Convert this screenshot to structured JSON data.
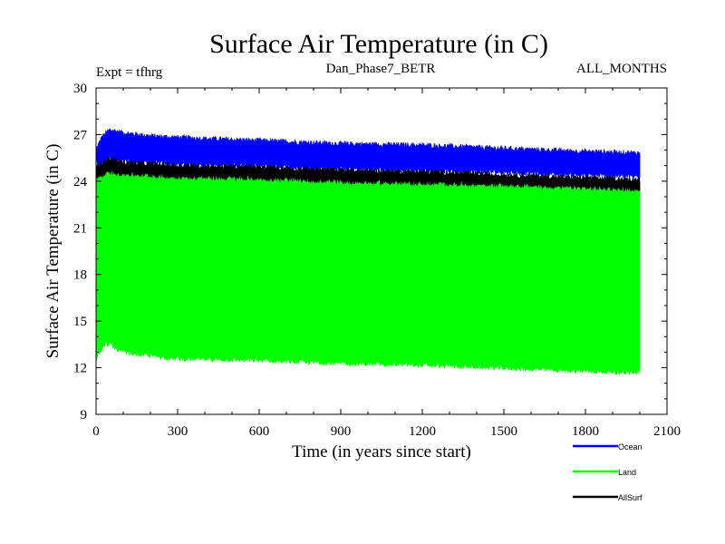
{
  "chart_data": {
    "type": "line",
    "title": "Surface Air Temperature (in C)",
    "header": {
      "left": "Expt = tfhrg",
      "center": "Dan_Phase7_BETR",
      "right": "ALL_MONTHS"
    },
    "xlabel": "Time (in years since start)",
    "ylabel": "Surface Air Temperature (in C)",
    "xlim": [
      0,
      2100
    ],
    "ylim": [
      9,
      30
    ],
    "xticks": [
      0,
      300,
      600,
      900,
      1200,
      1500,
      1800,
      2100
    ],
    "yticks": [
      9,
      12,
      15,
      18,
      21,
      24,
      27,
      30
    ],
    "legend_position": "bottom-right",
    "series": [
      {
        "name": "Ocean",
        "color": "#0000ff",
        "band_x": [
          0,
          20,
          50,
          100,
          200,
          300,
          600,
          900,
          1200,
          1500,
          1800,
          2000
        ],
        "band_upper": [
          26.0,
          26.8,
          27.3,
          27.1,
          26.9,
          26.8,
          26.6,
          26.4,
          26.3,
          26.1,
          25.9,
          25.8
        ],
        "band_lower": [
          24.6,
          25.2,
          25.4,
          25.3,
          25.2,
          25.1,
          25.0,
          24.8,
          24.7,
          24.6,
          24.4,
          24.3
        ]
      },
      {
        "name": "Land",
        "color": "#00ff00",
        "band_x": [
          0,
          10,
          20,
          35,
          50,
          100,
          200,
          300,
          600,
          900,
          1200,
          1500,
          1800,
          2000
        ],
        "band_upper": [
          25.3,
          24.6,
          24.8,
          25.1,
          25.4,
          25.0,
          24.8,
          24.6,
          24.4,
          24.2,
          24.0,
          23.9,
          23.7,
          23.6
        ],
        "band_lower": [
          12.6,
          13.0,
          13.2,
          13.6,
          13.5,
          13.0,
          12.8,
          12.6,
          12.5,
          12.3,
          12.2,
          12.0,
          11.8,
          11.7
        ]
      },
      {
        "name": "AllSurf",
        "color": "#000000",
        "band_x": [
          0,
          20,
          50,
          100,
          300,
          600,
          900,
          1200,
          1500,
          1800,
          2000
        ],
        "band_upper": [
          24.9,
          25.2,
          25.4,
          25.2,
          25.0,
          24.9,
          24.7,
          24.6,
          24.4,
          24.2,
          24.1
        ],
        "band_lower": [
          24.2,
          24.4,
          24.6,
          24.5,
          24.3,
          24.2,
          24.0,
          23.9,
          23.8,
          23.6,
          23.5
        ]
      }
    ]
  }
}
